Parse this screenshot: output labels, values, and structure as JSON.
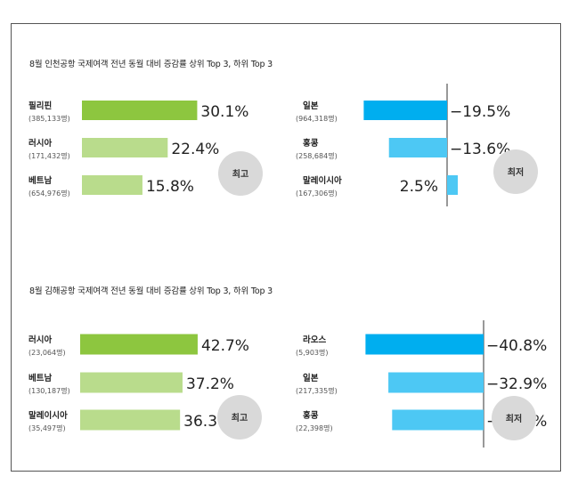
{
  "chart_data": [
    {
      "type": "bar",
      "title": "8월 인천공항 국제여객  전년 동월 대비 증감률 상위 Top 3, 하위 Top 3",
      "top": {
        "badge": "최고",
        "items": [
          {
            "name": "필리핀",
            "count": "(385,133명)",
            "value": 30.1,
            "label": "30.1%"
          },
          {
            "name": "러시아",
            "count": "(171,432명)",
            "value": 22.4,
            "label": "22.4%"
          },
          {
            "name": "베트남",
            "count": "(654,976명)",
            "value": 15.8,
            "label": "15.8%"
          }
        ]
      },
      "bottom": {
        "badge": "최저",
        "items": [
          {
            "name": "일본",
            "count": "(964,318명)",
            "value": -19.5,
            "label": "−19.5%"
          },
          {
            "name": "홍콩",
            "count": "(258,684명)",
            "value": -13.6,
            "label": "−13.6%"
          },
          {
            "name": "말레이시아",
            "count": "(167,306명)",
            "value": 2.5,
            "label": "2.5%"
          }
        ]
      }
    },
    {
      "type": "bar",
      "title": "8월 김해공항 국제여객 전년 동월 대비 증감률 상위 Top 3, 하위 Top 3",
      "top": {
        "badge": "최고",
        "items": [
          {
            "name": "러시아",
            "count": "(23,064명)",
            "value": 42.7,
            "label": "42.7%"
          },
          {
            "name": "베트남",
            "count": "(130,187명)",
            "value": 37.2,
            "label": "37.2%"
          },
          {
            "name": "말레이시아",
            "count": "(35,497명)",
            "value": 36.3,
            "label": "36.3%"
          }
        ]
      },
      "bottom": {
        "badge": "최저",
        "items": [
          {
            "name": "라오스",
            "count": "(5,903명)",
            "value": -40.8,
            "label": "−40.8%"
          },
          {
            "name": "일본",
            "count": "(217,335명)",
            "value": -32.9,
            "label": "−32.9%"
          },
          {
            "name": "홍콩",
            "count": "(22,398명)",
            "value": -31.6,
            "label": "−31.6%"
          }
        ]
      }
    }
  ],
  "colors": {
    "top_first": "#8dc63f",
    "top_rest": "#b9dc8c",
    "bottom_first": "#00aeef",
    "bottom_rest": "#4dc8f4",
    "badge": "#d9d9d9",
    "axis": "#333333"
  }
}
